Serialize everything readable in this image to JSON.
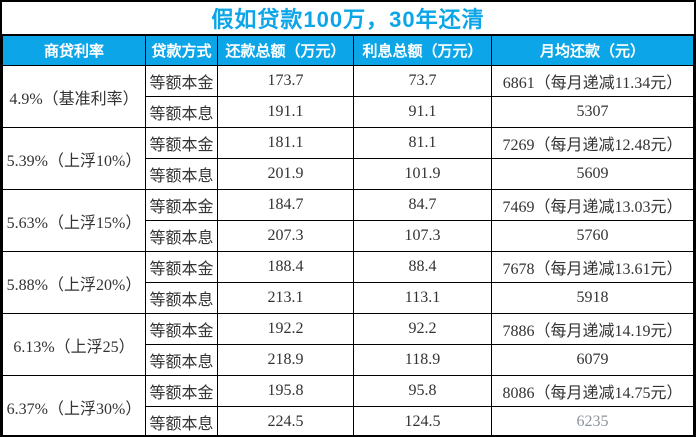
{
  "title": "假如贷款100万，30年还清",
  "colors": {
    "accent": "#0CA6E8",
    "header_text": "#FFFFFF",
    "body_text": "#333333",
    "muted_text": "#8B949C",
    "border": "#000000",
    "background": "#FFFFFF"
  },
  "table": {
    "headers": [
      "商贷利率",
      "贷款方式",
      "还款总额（万元）",
      "利息总额（万元）",
      "月均还款（元）"
    ],
    "groups": [
      {
        "rate": "4.9%（基准利率）",
        "rows": [
          {
            "method": "等额本金",
            "total": "173.7",
            "interest": "73.7",
            "monthly": "6861（每月递减11.34元）"
          },
          {
            "method": "等额本息",
            "total": "191.1",
            "interest": "91.1",
            "monthly": "5307"
          }
        ]
      },
      {
        "rate": "5.39%（上浮10%）",
        "rows": [
          {
            "method": "等额本金",
            "total": "181.1",
            "interest": "81.1",
            "monthly": "7269（每月递减12.48元）"
          },
          {
            "method": "等额本息",
            "total": "201.9",
            "interest": "101.9",
            "monthly": "5609"
          }
        ]
      },
      {
        "rate": "5.63%（上浮15%）",
        "rows": [
          {
            "method": "等额本金",
            "total": "184.7",
            "interest": "84.7",
            "monthly": "7469（每月递减13.03元）"
          },
          {
            "method": "等额本息",
            "total": "207.3",
            "interest": "107.3",
            "monthly": "5760"
          }
        ]
      },
      {
        "rate": "5.88%（上浮20%）",
        "rows": [
          {
            "method": "等额本金",
            "total": "188.4",
            "interest": "88.4",
            "monthly": "7678（每月递减13.61元）"
          },
          {
            "method": "等额本息",
            "total": "213.1",
            "interest": "113.1",
            "monthly": "5918"
          }
        ]
      },
      {
        "rate": "6.13%（上浮25）",
        "rows": [
          {
            "method": "等额本金",
            "total": "192.2",
            "interest": "92.2",
            "monthly": "7886（每月递减14.19元）"
          },
          {
            "method": "等额本息",
            "total": "218.9",
            "interest": "118.9",
            "monthly": "6079"
          }
        ]
      },
      {
        "rate": "6.37%（上浮30%）",
        "rows": [
          {
            "method": "等额本金",
            "total": "195.8",
            "interest": "95.8",
            "monthly": "8086（每月递减14.75元）"
          },
          {
            "method": "等额本息",
            "total": "224.5",
            "interest": "124.5",
            "monthly": "6235"
          }
        ]
      }
    ]
  }
}
